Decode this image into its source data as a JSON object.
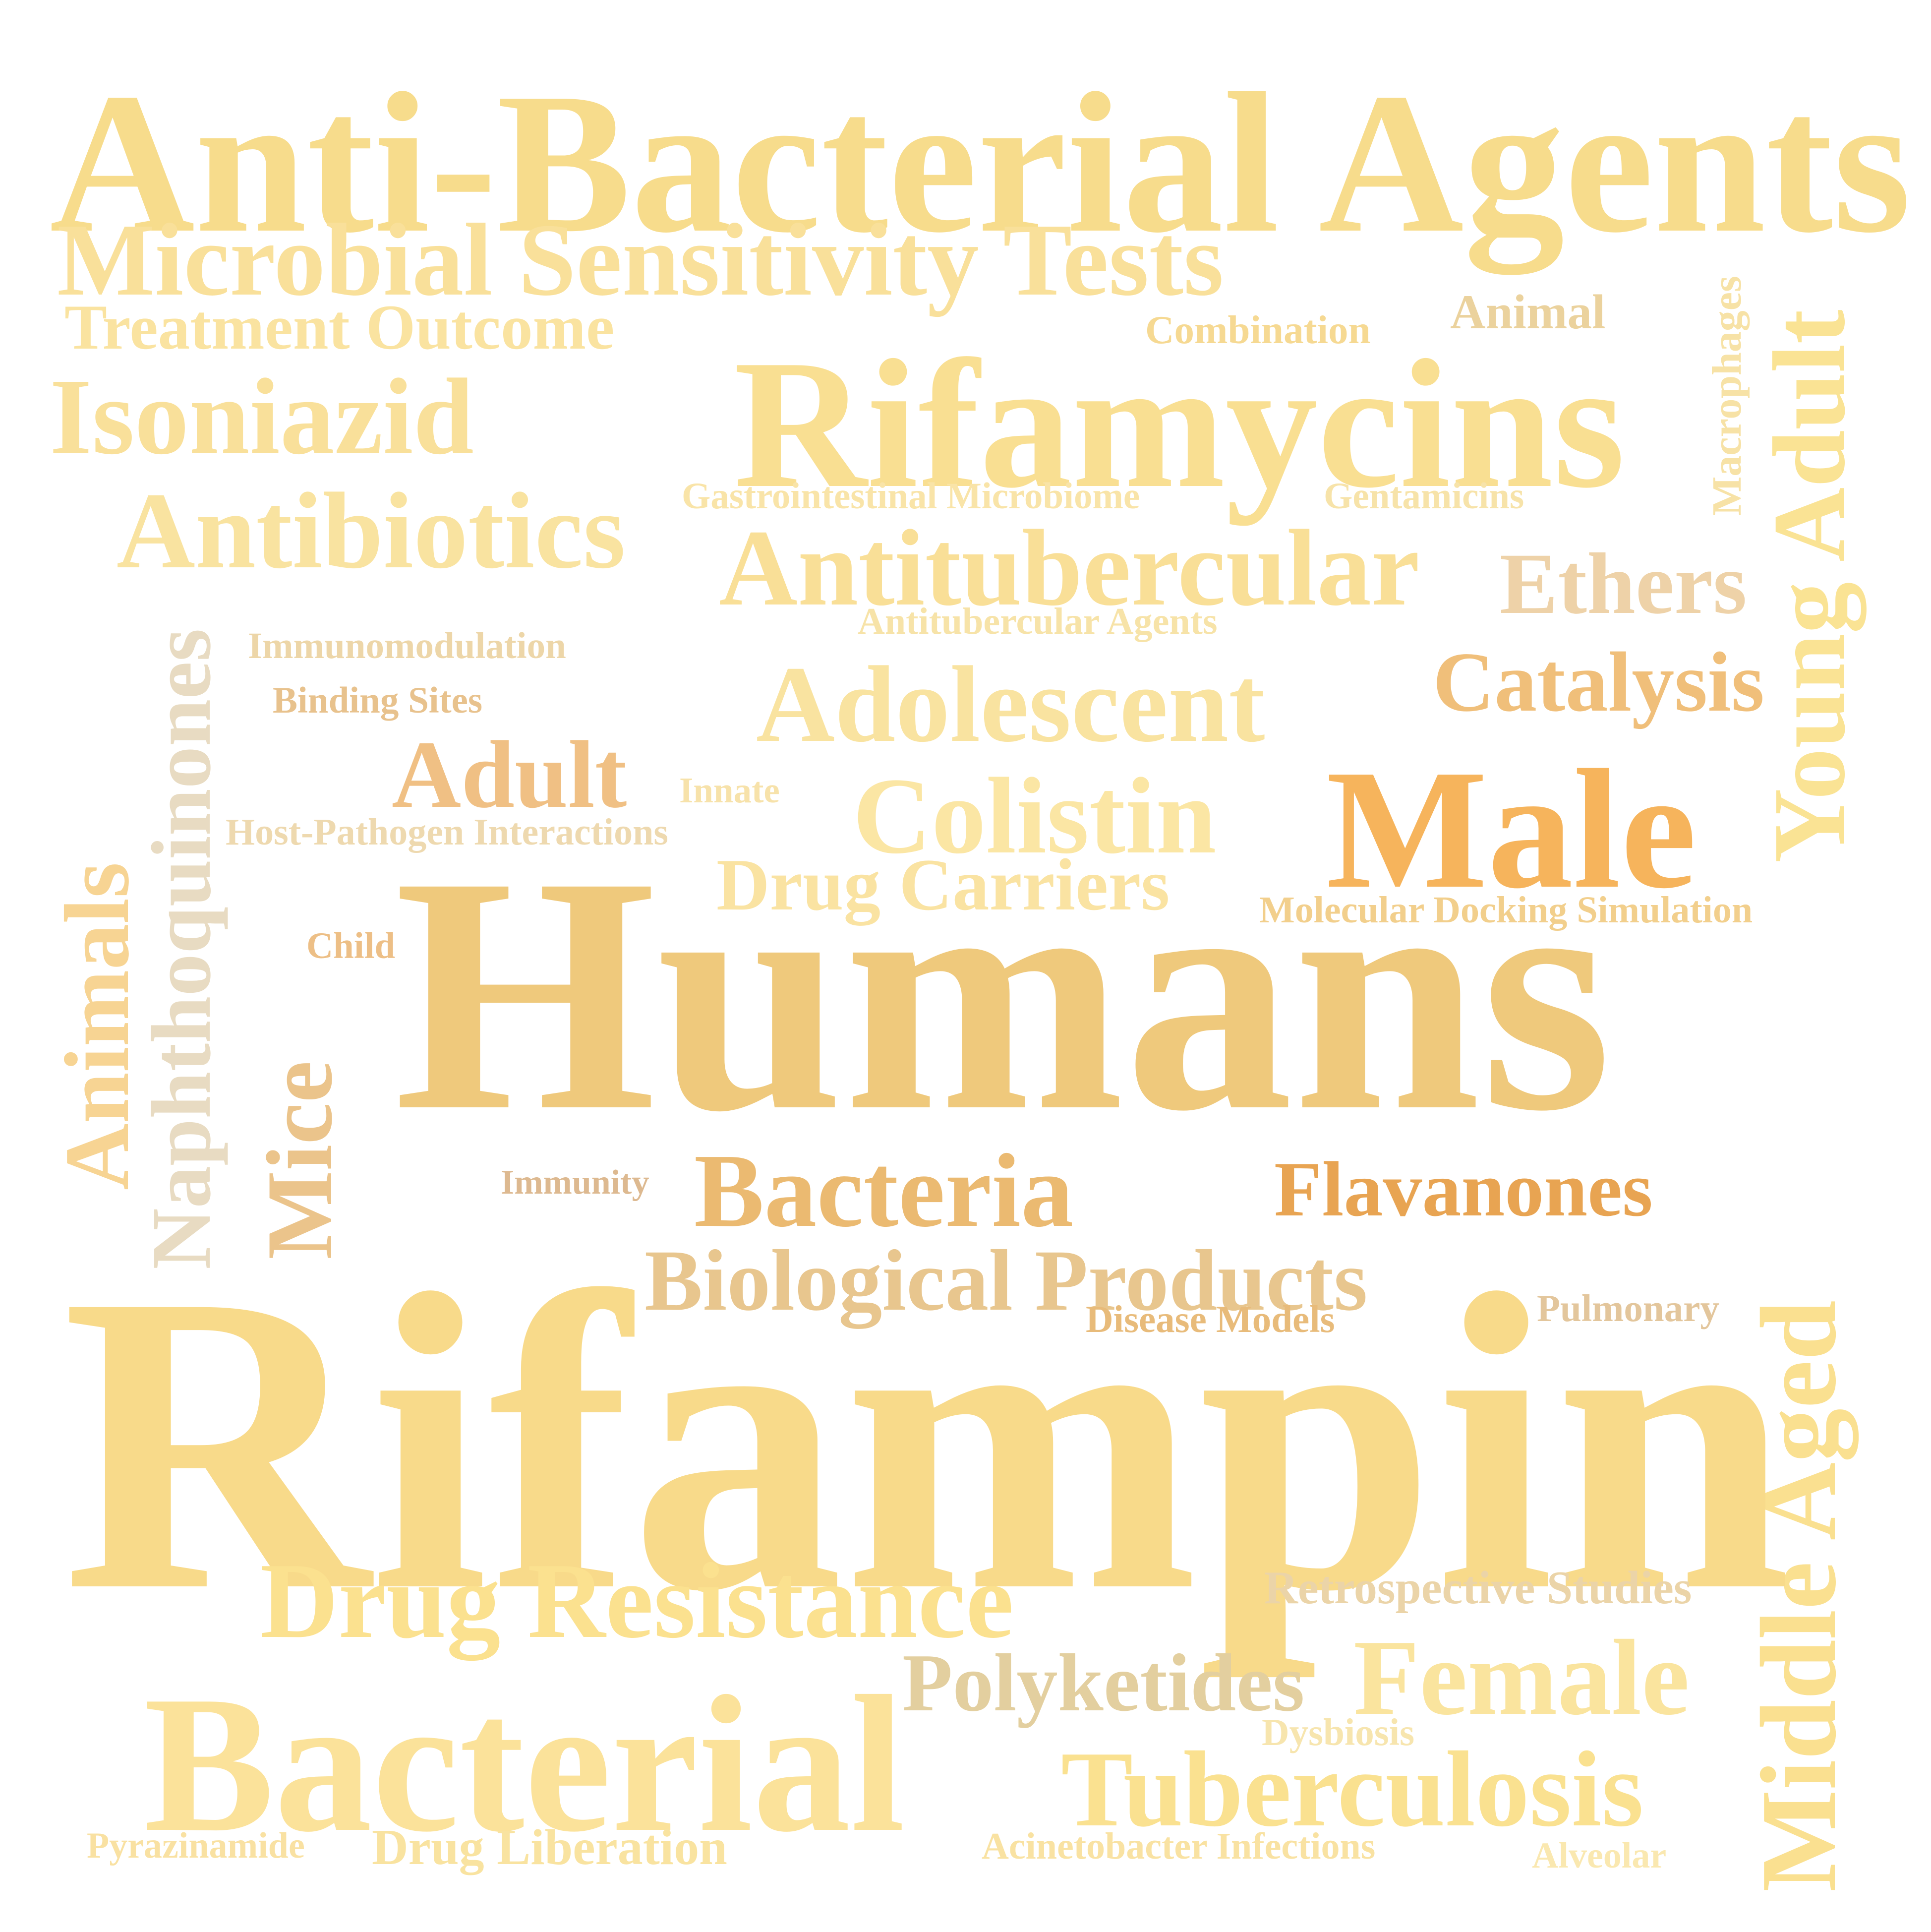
{
  "words": [
    {
      "id": "anti-bacterial-agents",
      "text": "Anti-Bacterial Agents",
      "color": "#F7DC8C"
    },
    {
      "id": "microbial-sensitivity-tests",
      "text": "Microbial Sensitivity Tests",
      "color": "#F9E09A"
    },
    {
      "id": "treatment-outcome",
      "text": "Treatment Outcome",
      "color": "#FAE3A0"
    },
    {
      "id": "combination",
      "text": "Combination",
      "color": "#F6D992"
    },
    {
      "id": "animal",
      "text": "Animal",
      "color": "#EBD29D"
    },
    {
      "id": "macrophages",
      "text": "Macrophages",
      "color": "#F7E2A6"
    },
    {
      "id": "young-adult",
      "text": "Young Adult",
      "color": "#FAE394"
    },
    {
      "id": "isoniazid",
      "text": "Isoniazid",
      "color": "#F9E09A"
    },
    {
      "id": "rifamycins",
      "text": "Rifamycins",
      "color": "#F9DF92"
    },
    {
      "id": "gastrointestinal-microbiome",
      "text": "Gastrointestinal Microbiome",
      "color": "#F9E4A8"
    },
    {
      "id": "gentamicins",
      "text": "Gentamicins",
      "color": "#F7E3A9"
    },
    {
      "id": "antibiotics",
      "text": "Antibiotics",
      "color": "#F9E3A0"
    },
    {
      "id": "antitubercular",
      "text": "Antitubercular",
      "color": "#F9DF97"
    },
    {
      "id": "ethers",
      "text": "Ethers",
      "color": "#EED2A8"
    },
    {
      "id": "antitubercular-agents",
      "text": "Antitubercular Agents",
      "color": "#F7E3A8"
    },
    {
      "id": "naphthoquinones",
      "text": "Naphthoquinones",
      "color": "#E8DBC2"
    },
    {
      "id": "immunomodulation",
      "text": "Immunomodulation",
      "color": "#EDD6A8"
    },
    {
      "id": "binding-sites",
      "text": "Binding Sites",
      "color": "#E8C28D"
    },
    {
      "id": "adolescent",
      "text": "Adolescent",
      "color": "#F9E3A0"
    },
    {
      "id": "catalysis",
      "text": "Catalysis",
      "color": "#F0BF7A"
    },
    {
      "id": "animals",
      "text": "Animals",
      "color": "#F7D493"
    },
    {
      "id": "adult",
      "text": "Adult",
      "color": "#F0C084"
    },
    {
      "id": "innate",
      "text": "Innate",
      "color": "#F7E2AA"
    },
    {
      "id": "colistin",
      "text": "Colistin",
      "color": "#FBE6A4"
    },
    {
      "id": "male",
      "text": "Male",
      "color": "#F6B45C"
    },
    {
      "id": "host-pathogen-interactions",
      "text": "Host-Pathogen Interactions",
      "color": "#EED9AF"
    },
    {
      "id": "drug-carriers",
      "text": "Drug Carriers",
      "color": "#FAE3A2"
    },
    {
      "id": "molecular-docking-simulation",
      "text": "Molecular Docking Simulation",
      "color": "#F2CF8C"
    },
    {
      "id": "child",
      "text": "Child",
      "color": "#EDBF86"
    },
    {
      "id": "humans",
      "text": "Humans",
      "color": "#EFC97C"
    },
    {
      "id": "mice",
      "text": "Mice",
      "color": "#EBC48B"
    },
    {
      "id": "immunity",
      "text": "Immunity",
      "color": "#DDB990"
    },
    {
      "id": "bacteria",
      "text": "Bacteria",
      "color": "#EBBA71"
    },
    {
      "id": "flavanones",
      "text": "Flavanones",
      "color": "#E8A452"
    },
    {
      "id": "biological-products",
      "text": "Biological Products",
      "color": "#E8C68E"
    },
    {
      "id": "middle-aged",
      "text": "Middle Aged",
      "color": "#FAE090"
    },
    {
      "id": "disease-models",
      "text": "Disease Models",
      "color": "#E8BB7A"
    },
    {
      "id": "pulmonary",
      "text": "Pulmonary",
      "color": "#E3C69C"
    },
    {
      "id": "rifampin",
      "text": "Rifampin",
      "color": "#F8DA8A"
    },
    {
      "id": "drug-resistance",
      "text": "Drug Resistance",
      "color": "#FBE18F"
    },
    {
      "id": "retrospective-studies",
      "text": "Retrospective Studies",
      "color": "#EBD4A8"
    },
    {
      "id": "polyketides",
      "text": "Polyketides",
      "color": "#E3CF9F"
    },
    {
      "id": "female",
      "text": "Female",
      "color": "#FAE49E"
    },
    {
      "id": "bacterial",
      "text": "Bacterial",
      "color": "#FBE29A"
    },
    {
      "id": "dysbiosis",
      "text": "Dysbiosis",
      "color": "#F7E5AE"
    },
    {
      "id": "tuberculosis",
      "text": "Tuberculosis",
      "color": "#FAE190"
    },
    {
      "id": "pyrazinamide",
      "text": "Pyrazinamide",
      "color": "#F9E1A2"
    },
    {
      "id": "drug-liberation",
      "text": "Drug Liberation",
      "color": "#F9E3A0"
    },
    {
      "id": "acinetobacter-infections",
      "text": "Acinetobacter Infections",
      "color": "#F9E2A2"
    },
    {
      "id": "alveolar",
      "text": "Alveolar",
      "color": "#FAE8B0"
    }
  ]
}
